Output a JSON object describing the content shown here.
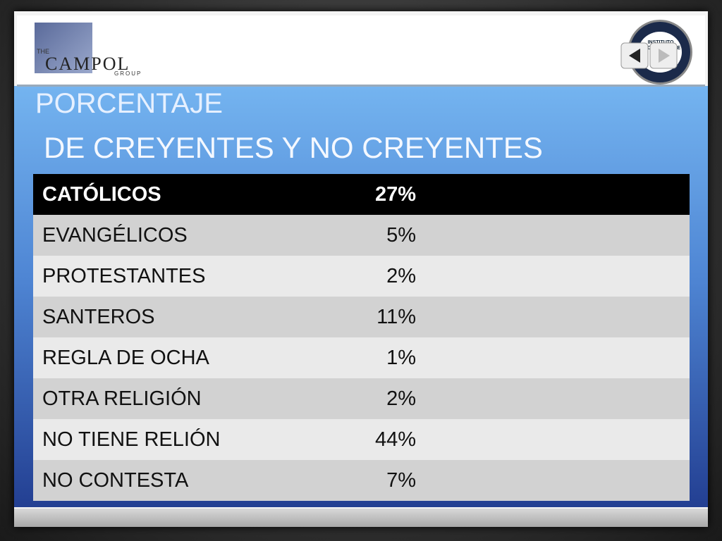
{
  "header": {
    "left_logo": {
      "small": "THE",
      "name": "CAMPOL",
      "sub": "GROUP"
    },
    "right_logo": {
      "line1": "INSTITUTO",
      "line2": "PEDRO ARRUPE"
    }
  },
  "title": {
    "line1": "PORCENTAJE",
    "line2": "DE CREYENTES Y NO CREYENTES"
  },
  "table": {
    "rows": [
      [
        "CATÓLICOS",
        "27%"
      ],
      [
        "EVANGÉLICOS",
        "5%"
      ],
      [
        "PROTESTANTES",
        "2%"
      ],
      [
        "SANTEROS",
        "11%"
      ],
      [
        "REGLA DE OCHA",
        "1%"
      ],
      [
        "OTRA RELIGIÓN",
        "2%"
      ],
      [
        "NO TIENE RELIÓN",
        "44%"
      ],
      [
        "NO CONTESTA",
        "7%"
      ]
    ]
  }
}
